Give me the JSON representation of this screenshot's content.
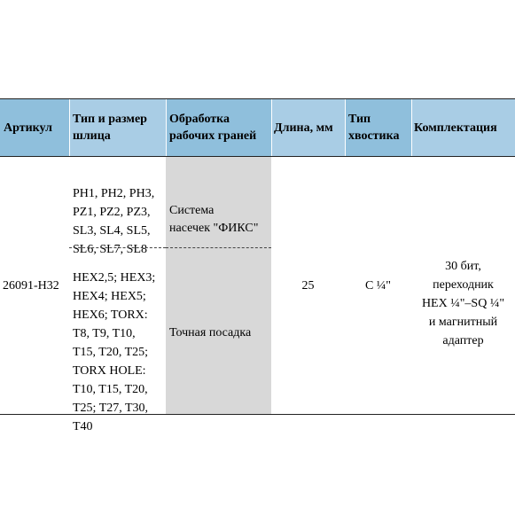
{
  "table": {
    "headers": [
      "Артикул",
      "Тип и размер\nшлица",
      "Обработка\nрабочих граней",
      "Длина, мм",
      "Тип\nхвостика",
      "Комплектация"
    ],
    "row": {
      "article": "26091-H32",
      "slot_types_1": "PH1, PH2, PH3,\nPZ1, PZ2, PZ3,\nSL3, SL4, SL5,\nSL6, SL7, SL8",
      "slot_types_2": "HEX2,5; HEX3;\nHEX4; HEX5;\nHEX6; TORX:\nT8, T9, T10,\nT15, T20, T25;\nTORX HOLE:\nT10, T15, T20,\nT25; T27, T30,\nT40",
      "processing_1": "Система\nнасечек \"ФИКС\"",
      "processing_2": "Точная посадка",
      "length": "25",
      "shank": "C ¼\"",
      "kit": "30 бит,\nпереходник\nHEX  ¼\"–SQ ¼\"\nи магнитный\nадаптер"
    }
  }
}
